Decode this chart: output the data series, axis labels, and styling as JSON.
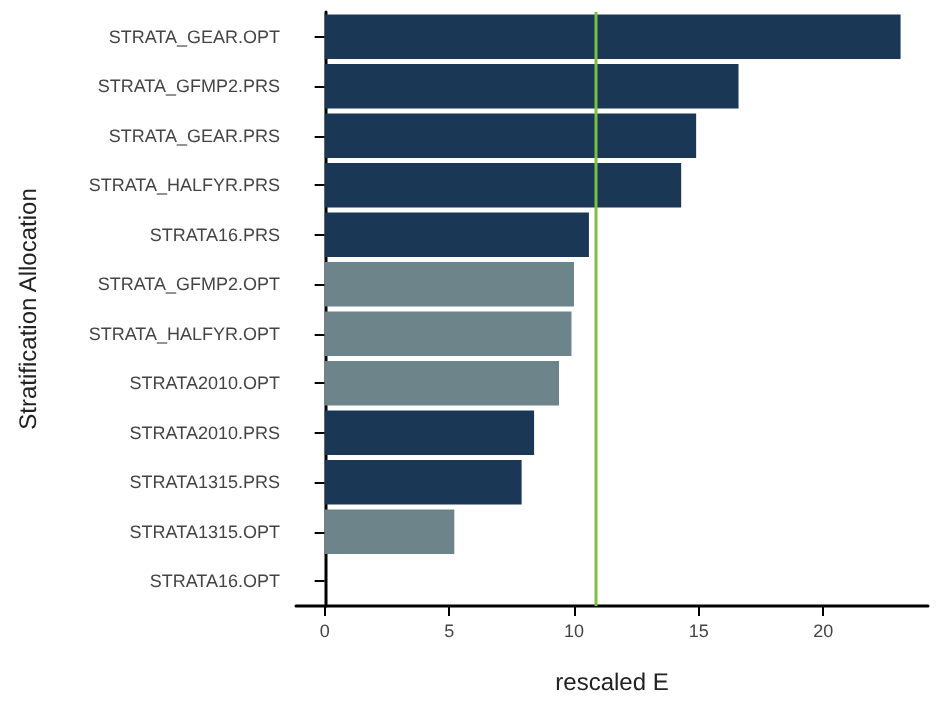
{
  "chart_data": {
    "type": "bar",
    "orientation": "horizontal",
    "xlabel": "rescaled E",
    "ylabel": "Stratification Allocation",
    "categories": [
      "STRATA_GEAR.OPT",
      "STRATA_GFMP2.PRS",
      "STRATA_GEAR.PRS",
      "STRATA_HALFYR.PRS",
      "STRATA16.PRS",
      "STRATA_GFMP2.OPT",
      "STRATA_HALFYR.OPT",
      "STRATA2010.OPT",
      "STRATA2010.PRS",
      "STRATA1315.PRS",
      "STRATA1315.OPT",
      "STRATA16.OPT"
    ],
    "values": [
      23.1,
      16.6,
      14.9,
      14.3,
      10.6,
      10.0,
      9.9,
      9.4,
      8.4,
      7.9,
      5.2,
      0
    ],
    "colors": [
      "#1b3756",
      "#1b3756",
      "#1b3756",
      "#1b3756",
      "#1b3756",
      "#6d848b",
      "#6d848b",
      "#6d848b",
      "#1b3756",
      "#1b3756",
      "#6d848b",
      "#6d848b"
    ],
    "xlim": [
      -1.15,
      24.2
    ],
    "xticks": [
      0,
      5,
      10,
      15,
      20
    ],
    "grid": false,
    "ref_lines": [
      {
        "axis": "x",
        "value": 10.9,
        "color": "#7ac143"
      }
    ]
  }
}
